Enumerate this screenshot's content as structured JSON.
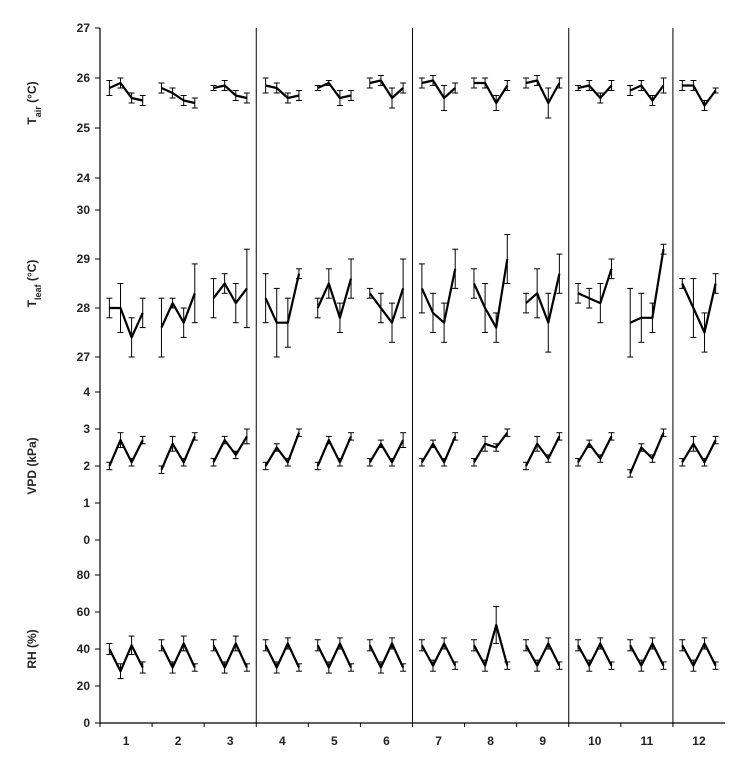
{
  "chart_data": [
    {
      "type": "line",
      "ylabel_main": "T",
      "ylabel_sub": "air",
      "ylabel_unit": " (°C)",
      "ylim": [
        24,
        27
      ],
      "yticks": [
        "24",
        "25",
        "26",
        "27"
      ],
      "series_values": [
        [
          25.8,
          25.9,
          25.6,
          25.55
        ],
        [
          25.8,
          25.7,
          25.55,
          25.5
        ],
        [
          25.8,
          25.85,
          25.65,
          25.6
        ],
        [
          25.85,
          25.8,
          25.6,
          25.65
        ],
        [
          25.8,
          25.9,
          25.6,
          25.65
        ],
        [
          25.9,
          25.95,
          25.6,
          25.8
        ],
        [
          25.9,
          25.95,
          25.6,
          25.8
        ],
        [
          25.9,
          25.9,
          25.5,
          25.85
        ],
        [
          25.9,
          25.95,
          25.5,
          25.9
        ],
        [
          25.8,
          25.85,
          25.6,
          25.85
        ],
        [
          25.75,
          25.85,
          25.55,
          25.85
        ],
        [
          25.85,
          25.85,
          25.45,
          25.75
        ]
      ],
      "series_errors": [
        [
          0.15,
          0.1,
          0.1,
          0.1
        ],
        [
          0.1,
          0.1,
          0.1,
          0.1
        ],
        [
          0.05,
          0.1,
          0.1,
          0.1
        ],
        [
          0.15,
          0.1,
          0.1,
          0.1
        ],
        [
          0.05,
          0.05,
          0.15,
          0.1
        ],
        [
          0.1,
          0.1,
          0.2,
          0.1
        ],
        [
          0.1,
          0.1,
          0.25,
          0.1
        ],
        [
          0.1,
          0.1,
          0.15,
          0.1
        ],
        [
          0.1,
          0.1,
          0.3,
          0.1
        ],
        [
          0.05,
          0.1,
          0.1,
          0.1
        ],
        [
          0.1,
          0.1,
          0.1,
          0.15
        ],
        [
          0.1,
          0.1,
          0.1,
          0.05
        ]
      ]
    },
    {
      "type": "line",
      "ylabel_main": "T",
      "ylabel_sub": "leaf",
      "ylabel_unit": " (°C)",
      "ylim": [
        27,
        30
      ],
      "yticks": [
        "27",
        "28",
        "29",
        "30"
      ],
      "series_values": [
        [
          28.0,
          28.0,
          27.4,
          27.9
        ],
        [
          27.6,
          28.1,
          27.7,
          28.3
        ],
        [
          28.2,
          28.5,
          28.1,
          28.4
        ],
        [
          28.2,
          27.7,
          27.7,
          28.7
        ],
        [
          28.0,
          28.5,
          27.8,
          28.6
        ],
        [
          28.3,
          28.0,
          27.7,
          28.4
        ],
        [
          28.4,
          27.9,
          27.7,
          28.8
        ],
        [
          28.5,
          28.0,
          27.6,
          29.0
        ],
        [
          28.1,
          28.3,
          27.7,
          28.7
        ],
        [
          28.3,
          28.2,
          28.1,
          28.8
        ],
        [
          27.7,
          27.8,
          27.8,
          29.2
        ],
        [
          28.5,
          28.0,
          27.5,
          28.5
        ]
      ],
      "series_errors": [
        [
          0.2,
          0.5,
          0.4,
          0.3
        ],
        [
          0.6,
          0.1,
          0.3,
          0.6
        ],
        [
          0.4,
          0.2,
          0.4,
          0.8
        ],
        [
          0.5,
          0.7,
          0.5,
          0.1
        ],
        [
          0.2,
          0.3,
          0.3,
          0.4
        ],
        [
          0.1,
          0.3,
          0.4,
          0.6
        ],
        [
          0.5,
          0.4,
          0.4,
          0.4
        ],
        [
          0.3,
          0.5,
          0.3,
          0.5
        ],
        [
          0.2,
          0.5,
          0.6,
          0.4
        ],
        [
          0.2,
          0.2,
          0.4,
          0.2
        ],
        [
          0.7,
          0.5,
          0.3,
          0.1
        ],
        [
          0.1,
          0.6,
          0.4,
          0.2
        ]
      ]
    },
    {
      "type": "line",
      "ylabel_main": "VPD (kPa)",
      "ylabel_sub": "",
      "ylabel_unit": "",
      "ylim": [
        0,
        4
      ],
      "yticks": [
        "0",
        "1",
        "2",
        "3",
        "4"
      ],
      "series_values": [
        [
          2.0,
          2.7,
          2.1,
          2.7
        ],
        [
          1.9,
          2.6,
          2.1,
          2.8
        ],
        [
          2.1,
          2.7,
          2.3,
          2.8
        ],
        [
          2.0,
          2.5,
          2.1,
          2.9
        ],
        [
          2.0,
          2.7,
          2.1,
          2.8
        ],
        [
          2.1,
          2.6,
          2.1,
          2.7
        ],
        [
          2.1,
          2.6,
          2.1,
          2.8
        ],
        [
          2.1,
          2.6,
          2.5,
          2.9
        ],
        [
          2.0,
          2.6,
          2.2,
          2.8
        ],
        [
          2.1,
          2.6,
          2.2,
          2.8
        ],
        [
          1.8,
          2.5,
          2.2,
          2.9
        ],
        [
          2.1,
          2.6,
          2.1,
          2.7
        ]
      ],
      "series_errors": [
        [
          0.1,
          0.2,
          0.1,
          0.1
        ],
        [
          0.1,
          0.2,
          0.1,
          0.1
        ],
        [
          0.1,
          0.1,
          0.1,
          0.2
        ],
        [
          0.1,
          0.1,
          0.1,
          0.1
        ],
        [
          0.1,
          0.1,
          0.1,
          0.1
        ],
        [
          0.1,
          0.1,
          0.1,
          0.2
        ],
        [
          0.1,
          0.1,
          0.1,
          0.1
        ],
        [
          0.1,
          0.2,
          0.1,
          0.1
        ],
        [
          0.1,
          0.2,
          0.1,
          0.1
        ],
        [
          0.1,
          0.1,
          0.1,
          0.1
        ],
        [
          0.1,
          0.1,
          0.1,
          0.1
        ],
        [
          0.1,
          0.2,
          0.1,
          0.1
        ]
      ]
    },
    {
      "type": "line",
      "ylabel_main": "RH (%)",
      "ylabel_sub": "",
      "ylabel_unit": "",
      "ylim": [
        0,
        80
      ],
      "yticks": [
        "0",
        "20",
        "40",
        "60",
        "80"
      ],
      "series_values": [
        [
          40,
          28,
          42,
          30
        ],
        [
          42,
          30,
          43,
          30
        ],
        [
          42,
          30,
          43,
          30
        ],
        [
          42,
          30,
          43,
          30
        ],
        [
          42,
          30,
          43,
          30
        ],
        [
          42,
          30,
          43,
          30
        ],
        [
          42,
          31,
          43,
          31
        ],
        [
          42,
          31,
          53,
          31
        ],
        [
          42,
          31,
          43,
          31
        ],
        [
          42,
          31,
          43,
          31
        ],
        [
          42,
          31,
          43,
          31
        ],
        [
          42,
          31,
          43,
          31
        ]
      ],
      "series_errors": [
        [
          3,
          4,
          5,
          3
        ],
        [
          3,
          3,
          4,
          2
        ],
        [
          3,
          3,
          4,
          2
        ],
        [
          3,
          3,
          3,
          2
        ],
        [
          3,
          3,
          3,
          2
        ],
        [
          3,
          3,
          3,
          2
        ],
        [
          3,
          3,
          3,
          2
        ],
        [
          3,
          3,
          10,
          2
        ],
        [
          3,
          3,
          3,
          2
        ],
        [
          3,
          3,
          3,
          2
        ],
        [
          3,
          3,
          3,
          2
        ],
        [
          3,
          3,
          3,
          2
        ]
      ]
    }
  ],
  "x_categories": [
    "1",
    "2",
    "3",
    "4",
    "5",
    "6",
    "7",
    "8",
    "9",
    "10",
    "11",
    "12"
  ],
  "group_dividers_after": [
    3,
    6,
    9,
    11
  ]
}
